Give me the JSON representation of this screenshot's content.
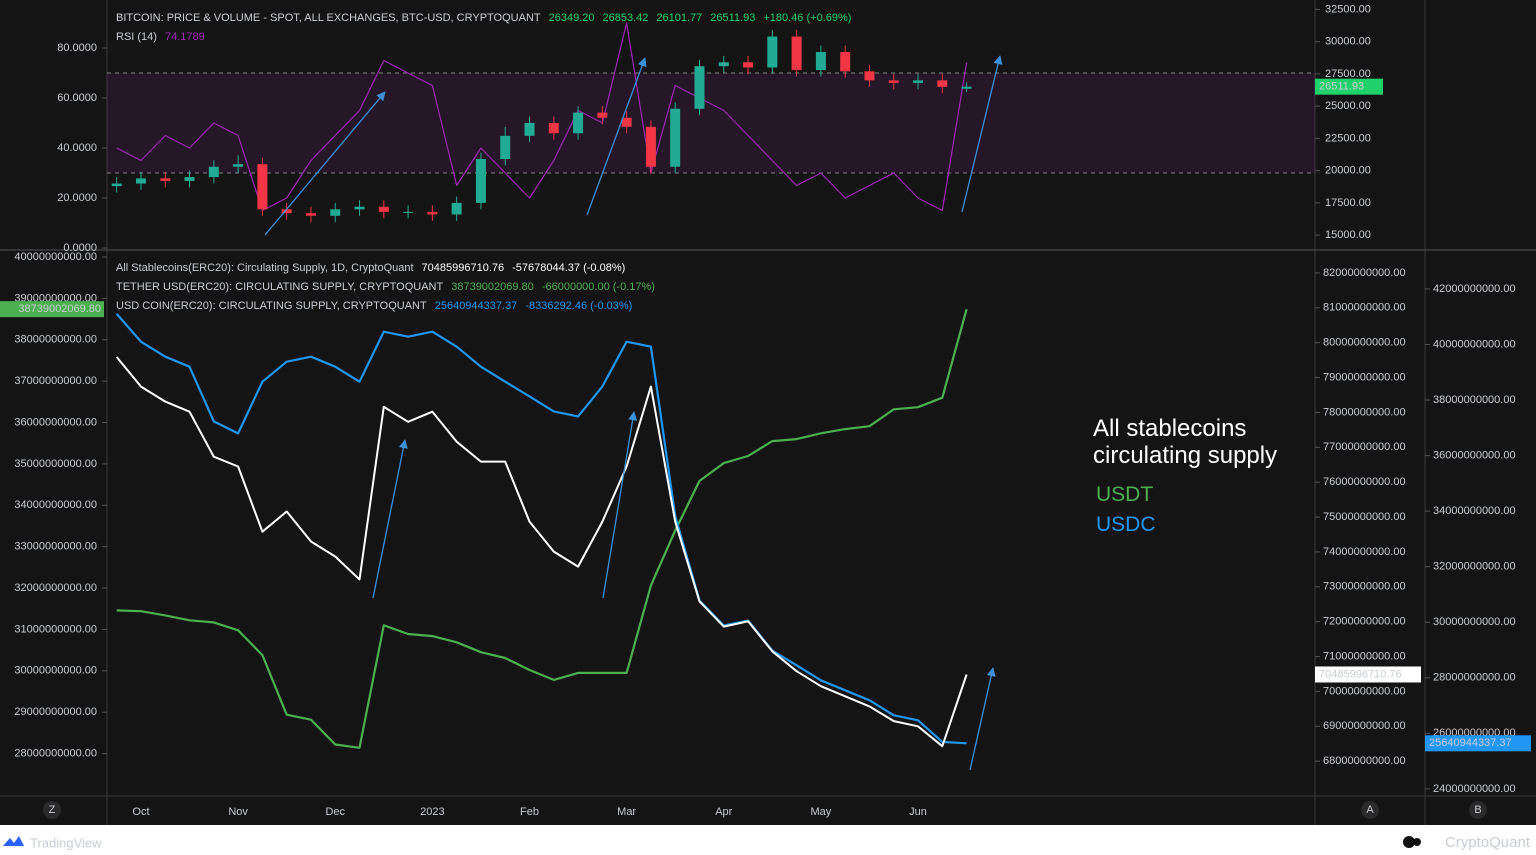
{
  "chart_data": [
    {
      "type": "candlestick",
      "title": "BITCOIN: PRICE & VOLUME - SPOT, ALL EXCHANGES, BTC-USD, CRYPTOQUANT",
      "header_values": [
        "26349.20",
        "26853.42",
        "26101.77",
        "+180.46 (+0.69%)"
      ],
      "categories": [
        null,
        "Oct",
        null,
        null,
        null,
        "Nov",
        null,
        null,
        null,
        "Dec",
        null,
        null,
        null,
        "2023",
        null,
        null,
        null,
        "Feb",
        null,
        null,
        null,
        "Mar",
        null,
        null,
        null,
        "Apr",
        null,
        null,
        null,
        "May",
        null,
        null,
        null,
        "Jun",
        null,
        null
      ],
      "ohlc": {
        "up_color": "#22ab94",
        "down_color": "#f23645",
        "open": [
          18800,
          19000,
          19400,
          19200,
          19500,
          20300,
          20500,
          17000,
          16700,
          16500,
          17000,
          17200,
          16800,
          16800,
          16600,
          17500,
          20900,
          22700,
          23700,
          22900,
          24500,
          24100,
          23400,
          20300,
          24800,
          28100,
          28400,
          28000,
          30400,
          27800,
          29200,
          27700,
          27000,
          26800,
          27000,
          26349.2
        ],
        "high": [
          19500,
          19900,
          19900,
          20000,
          20800,
          21200,
          21000,
          17500,
          17200,
          17500,
          17700,
          17700,
          17300,
          17300,
          18000,
          21400,
          23400,
          24200,
          24200,
          25000,
          25000,
          24600,
          23900,
          25300,
          28600,
          28900,
          28900,
          30900,
          30900,
          29700,
          29700,
          28200,
          27500,
          27500,
          27500,
          26853.42
        ],
        "low": [
          18300,
          18500,
          18700,
          18700,
          19000,
          19800,
          16500,
          16200,
          16000,
          16000,
          16500,
          16300,
          16300,
          16100,
          16100,
          17000,
          20400,
          22200,
          22400,
          22400,
          23600,
          22900,
          19800,
          19800,
          24300,
          27600,
          27500,
          27500,
          27300,
          27300,
          27200,
          26500,
          26300,
          26300,
          26000,
          26101.77
        ],
        "close": [
          19000,
          19400,
          19200,
          19500,
          20300,
          20500,
          17000,
          16700,
          16500,
          17000,
          17200,
          16800,
          16800,
          16600,
          17500,
          20900,
          22700,
          23700,
          22900,
          24500,
          24100,
          23400,
          20300,
          24800,
          28100,
          28400,
          28000,
          30400,
          27800,
          29200,
          27700,
          27000,
          26800,
          27000,
          26500,
          26511.93
        ]
      },
      "rsi": {
        "name": "RSI (14)",
        "color": "#9c27b0",
        "axis": "y2",
        "values": [
          40,
          35,
          45,
          40,
          50,
          45,
          15,
          20,
          35,
          45,
          55,
          75,
          70,
          65,
          25,
          40,
          30,
          20,
          35,
          55,
          50,
          90,
          30,
          65,
          60,
          55,
          45,
          35,
          25,
          30,
          20,
          25,
          30,
          20,
          15,
          74.1789
        ],
        "levels": [
          30,
          70
        ]
      },
      "ylim": [
        14000,
        33000
      ],
      "yticks": [
        {
          "value": 15000,
          "label": "15000.00"
        },
        {
          "value": 17500,
          "label": "17500.00"
        },
        {
          "value": 20000,
          "label": "20000.00"
        },
        {
          "value": 22500,
          "label": "22500.00"
        },
        {
          "value": 25000,
          "label": "25000.00"
        },
        {
          "value": 27500,
          "label": "27500.00"
        },
        {
          "value": 30000,
          "label": "30000.00"
        },
        {
          "value": 32500,
          "label": "32500.00"
        }
      ],
      "y2lim": [
        0,
        98
      ],
      "y2ticks": [
        {
          "value": 0,
          "label": "0.0000"
        },
        {
          "value": 20,
          "label": "20.0000"
        },
        {
          "value": 40,
          "label": "40.0000"
        },
        {
          "value": 60,
          "label": "60.0000"
        },
        {
          "value": 80,
          "label": "80.0000"
        }
      ]
    },
    {
      "type": "line",
      "categories": [
        null,
        "Oct",
        null,
        null,
        null,
        "Nov",
        null,
        null,
        null,
        "Dec",
        null,
        null,
        null,
        "2023",
        null,
        null,
        null,
        "Feb",
        null,
        null,
        null,
        "Mar",
        null,
        null,
        null,
        "Apr",
        null,
        null,
        null,
        "May",
        null,
        null,
        null,
        "Jun",
        null,
        null
      ],
      "series": [
        {
          "name": "All Stablecoins(ERC20): Circulating Supply, 1D, CryptoQuant",
          "color": "#ffffff",
          "axis": "y2",
          "change_label": "-57678044.37 (-0.08%)",
          "values": [
            79590000000,
            78740000000,
            78310000000,
            78020000000,
            76730000000,
            76450000000,
            74580000000,
            75160000000,
            74300000000,
            73870000000,
            73210000000,
            78160000000,
            77730000000,
            78020000000,
            77160000000,
            76590000000,
            76590000000,
            74870000000,
            74010000000,
            73580000000,
            74870000000,
            76450000000,
            78740000000,
            74870000000,
            72580000000,
            71860000000,
            72010000000,
            71150000000,
            70580000000,
            70150000000,
            69860000000,
            69570000000,
            69150000000,
            69000000000,
            68430000000,
            70485996710.76
          ]
        },
        {
          "name": "TETHER USD(ERC20): CIRCULATING SUPPLY, CRYPTOQUANT",
          "color": "#4caf50",
          "axis": "y",
          "last_label": "38739002069.80",
          "change_label": "-66000000.00 (-0.17%)",
          "values": [
            31460000000,
            31440000000,
            31340000000,
            31220000000,
            31170000000,
            30980000000,
            30380000000,
            28940000000,
            28820000000,
            28220000000,
            28140000000,
            31100000000,
            30890000000,
            30840000000,
            30690000000,
            30450000000,
            30310000000,
            30020000000,
            29780000000,
            29950000000,
            29950000000,
            29950000000,
            32060000000,
            33390000000,
            34590000000,
            35020000000,
            35190000000,
            35550000000,
            35600000000,
            35740000000,
            35840000000,
            35910000000,
            36320000000,
            36370000000,
            36600000000,
            38739002069.8
          ]
        },
        {
          "name": "USD COIN(ERC20): CIRCULATING SUPPLY, CRYPTOQUANT",
          "color": "#2196f3",
          "axis": "y3",
          "change_label": "-8336292.46 (-0.03%)",
          "values": [
            41100000000,
            40100000000,
            39560000000,
            39200000000,
            37230000000,
            36800000000,
            38660000000,
            39380000000,
            39560000000,
            39200000000,
            38660000000,
            40460000000,
            40280000000,
            40460000000,
            39920000000,
            39200000000,
            38660000000,
            38130000000,
            37590000000,
            37410000000,
            38490000000,
            40100000000,
            39920000000,
            33820000000,
            30780000000,
            29880000000,
            30060000000,
            28980000000,
            28450000000,
            27910000000,
            27550000000,
            27190000000,
            26650000000,
            26470000000,
            25690000000,
            25640944337.37
          ]
        }
      ],
      "ylim": [
        27000000000,
        40120000000
      ],
      "yticks": [
        {
          "value": 28000000000,
          "label": "28000000000.00"
        },
        {
          "value": 29000000000,
          "label": "29000000000.00"
        },
        {
          "value": 30000000000,
          "label": "30000000000.00"
        },
        {
          "value": 31000000000,
          "label": "31000000000.00"
        },
        {
          "value": 32000000000,
          "label": "32000000000.00"
        },
        {
          "value": 33000000000,
          "label": "33000000000.00"
        },
        {
          "value": 34000000000,
          "label": "34000000000.00"
        },
        {
          "value": 35000000000,
          "label": "35000000000.00"
        },
        {
          "value": 36000000000,
          "label": "36000000000.00"
        },
        {
          "value": 37000000000,
          "label": "37000000000.00"
        },
        {
          "value": 38000000000,
          "label": "38000000000.00"
        },
        {
          "value": 39000000000,
          "label": "39000000000.00"
        },
        {
          "value": 40000000000,
          "label": "40000000000.00"
        }
      ],
      "y2lim": [
        67030000000,
        82600000000
      ],
      "y2ticks": [
        {
          "value": 68000000000,
          "label": "68000000000.00"
        },
        {
          "value": 69000000000,
          "label": "69000000000.00"
        },
        {
          "value": 70000000000,
          "label": "70000000000.00"
        },
        {
          "value": 71000000000,
          "label": "71000000000.00"
        },
        {
          "value": 72000000000,
          "label": "72000000000.00"
        },
        {
          "value": 73000000000,
          "label": "73000000000.00"
        },
        {
          "value": 74000000000,
          "label": "74000000000.00"
        },
        {
          "value": 75000000000,
          "label": "75000000000.00"
        },
        {
          "value": 76000000000,
          "label": "76000000000.00"
        },
        {
          "value": 77000000000,
          "label": "77000000000.00"
        },
        {
          "value": 78000000000,
          "label": "78000000000.00"
        },
        {
          "value": 79000000000,
          "label": "79000000000.00"
        },
        {
          "value": 80000000000,
          "label": "80000000000.00"
        },
        {
          "value": 81000000000,
          "label": "81000000000.00"
        },
        {
          "value": 82000000000,
          "label": "82000000000.00"
        }
      ],
      "y3lim": [
        23780000000,
        43330000000
      ],
      "y3ticks": [
        {
          "value": 24000000000,
          "label": "24000000000.00"
        },
        {
          "value": 26000000000,
          "label": "26000000000.00"
        },
        {
          "value": 28000000000,
          "label": "28000000000.00"
        },
        {
          "value": 30000000000,
          "label": "30000000000.00"
        },
        {
          "value": 32000000000,
          "label": "32000000000.00"
        },
        {
          "value": 34000000000,
          "label": "34000000000.00"
        },
        {
          "value": 36000000000,
          "label": "36000000000.00"
        },
        {
          "value": 38000000000,
          "label": "38000000000.00"
        },
        {
          "value": 40000000000,
          "label": "40000000000.00"
        },
        {
          "value": 42000000000,
          "label": "42000000000.00"
        }
      ],
      "annotations": [
        {
          "text": "All stablecoins circulating supply",
          "color": "#ffffff"
        },
        {
          "text": "USDT",
          "color": "#4caf50"
        },
        {
          "text": "USDC",
          "color": "#2196f3"
        }
      ]
    }
  ],
  "ui": {
    "buttons": [
      "Z",
      "A",
      "B"
    ],
    "brand_left": "TradingView",
    "brand_right": "CryptoQuant"
  }
}
